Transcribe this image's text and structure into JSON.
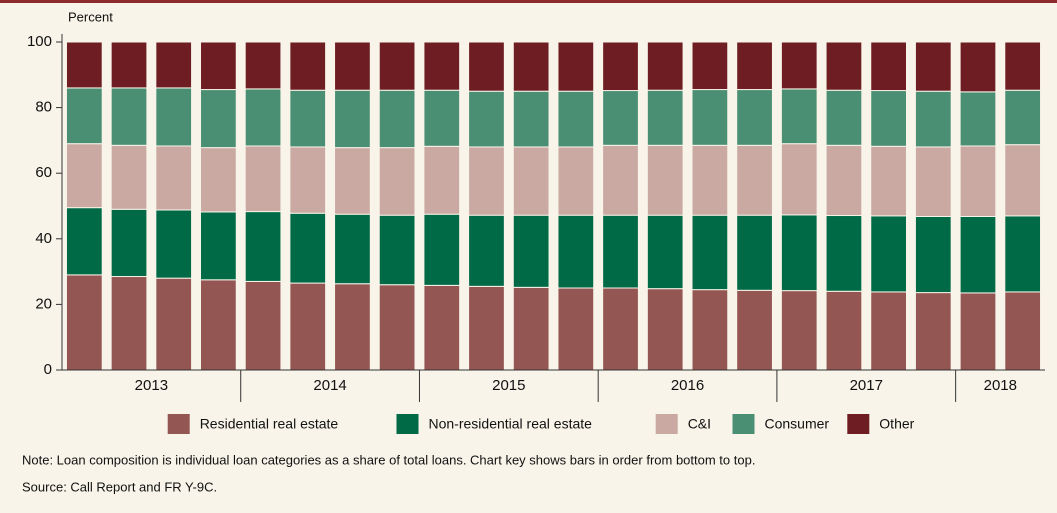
{
  "chart_data": {
    "type": "stacked_bar",
    "y_axis_label": "Percent",
    "categories": [
      "2013",
      "2013",
      "2013",
      "2013",
      "2014",
      "2014",
      "2014",
      "2014",
      "2015",
      "2015",
      "2015",
      "2015",
      "2016",
      "2016",
      "2016",
      "2016",
      "2017",
      "2017",
      "2017",
      "2017",
      "2018",
      "2018"
    ],
    "series": [
      {
        "name": "Residential real estate",
        "color": "#935652",
        "values": [
          29,
          28.5,
          28,
          27.5,
          27,
          26.5,
          26.3,
          26,
          25.8,
          25.5,
          25.2,
          25,
          25,
          24.8,
          24.5,
          24.3,
          24.2,
          24,
          23.8,
          23.6,
          23.5,
          23.8
        ]
      },
      {
        "name": "Non-residential real estate",
        "color": "#006a46",
        "values": [
          20.5,
          20.5,
          20.8,
          20.7,
          21.3,
          21.3,
          21.2,
          21.2,
          21.7,
          21.7,
          22,
          22.2,
          22.2,
          22.4,
          22.7,
          22.9,
          23.1,
          23.1,
          23.2,
          23.2,
          23.3,
          23.2
        ]
      },
      {
        "name": "C&I",
        "color": "#c9a9a1",
        "values": [
          19.5,
          19.5,
          19.5,
          19.6,
          20,
          20.2,
          20.3,
          20.6,
          20.7,
          20.8,
          20.8,
          20.8,
          21.3,
          21.3,
          21.3,
          21.3,
          21.7,
          21.4,
          21.2,
          21.2,
          21.5,
          21.7
        ]
      },
      {
        "name": "Consumer",
        "color": "#4a8f74",
        "values": [
          17,
          17.5,
          17.7,
          17.7,
          17.4,
          17.3,
          17.5,
          17.5,
          17.1,
          17,
          17,
          17,
          16.7,
          16.8,
          17,
          17,
          16.7,
          16.8,
          17,
          17,
          16.5,
          16.6
        ]
      },
      {
        "name": "Other",
        "color": "#6e1e22",
        "values": [
          14,
          14,
          14,
          14.5,
          14.3,
          14.7,
          14.7,
          14.7,
          14.7,
          15,
          15,
          15,
          14.8,
          14.7,
          14.5,
          14.5,
          14.3,
          14.7,
          14.8,
          15,
          15.2,
          14.7
        ]
      }
    ],
    "ylim": [
      0,
      100
    ],
    "yticks": [
      0,
      20,
      40,
      60,
      80,
      100
    ],
    "note": "Note: Loan composition is individual loan categories as a share of total loans. Chart key shows bars in order from bottom to top.",
    "source": "Source: Call Report and FR Y-9C."
  }
}
